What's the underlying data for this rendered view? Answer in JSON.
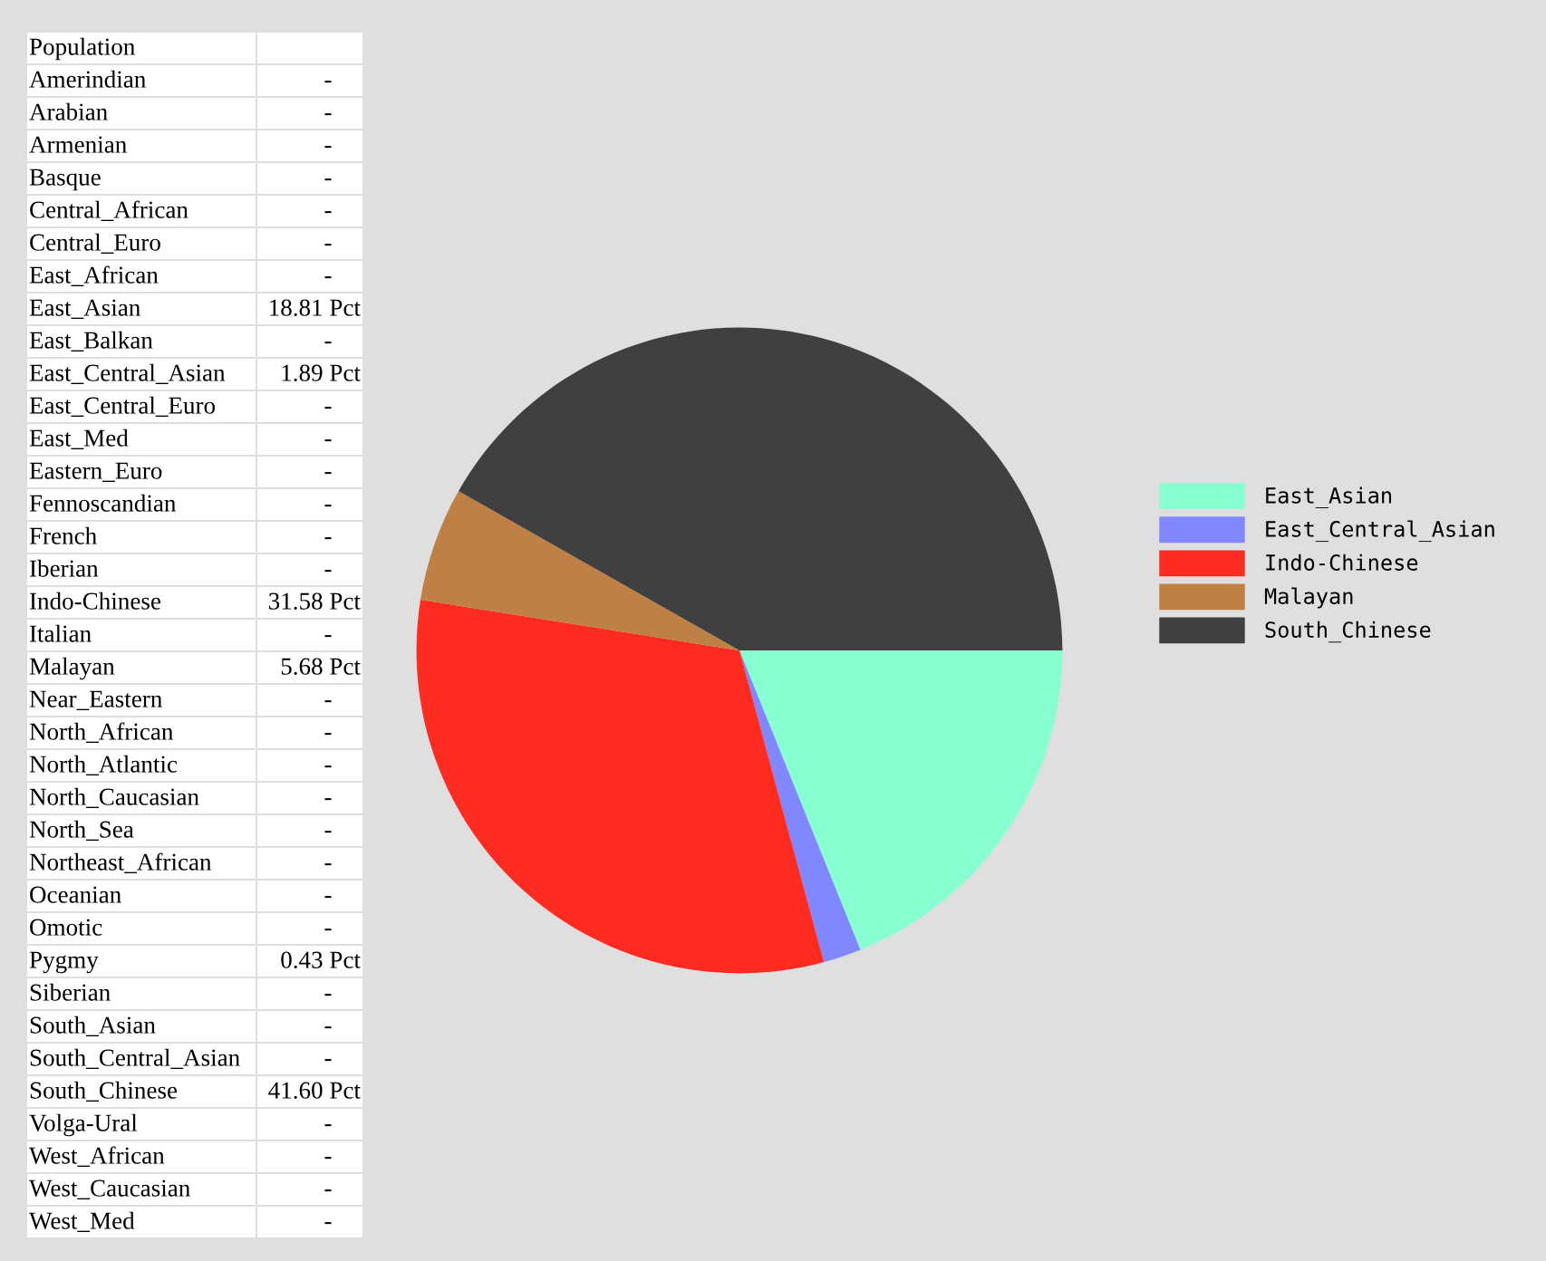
{
  "chart_data": [
    {
      "type": "other",
      "title": "Population",
      "categories": [
        "Amerindian",
        "Arabian",
        "Armenian",
        "Basque",
        "Central_African",
        "Central_Euro",
        "East_African",
        "East_Asian",
        "East_Balkan",
        "East_Central_Asian",
        "East_Central_Euro",
        "East_Med",
        "Eastern_Euro",
        "Fennoscandian",
        "French",
        "Iberian",
        "Indo-Chinese",
        "Italian",
        "Malayan",
        "Near_Eastern",
        "North_African",
        "North_Atlantic",
        "North_Caucasian",
        "North_Sea",
        "Northeast_African",
        "Oceanian",
        "Omotic",
        "Pygmy",
        "Siberian",
        "South_Asian",
        "South_Central_Asian",
        "South_Chinese",
        "Volga-Ural",
        "West_African",
        "West_Caucasian",
        "West_Med"
      ],
      "value_labels": [
        "-",
        "-",
        "-",
        "-",
        "-",
        "-",
        "-",
        "18.81 Pct",
        "-",
        "1.89 Pct",
        "-",
        "-",
        "-",
        "-",
        "-",
        "-",
        "31.58 Pct",
        "-",
        "5.68 Pct",
        "-",
        "-",
        "-",
        "-",
        "-",
        "-",
        "-",
        "-",
        "0.43 Pct",
        "-",
        "-",
        "-",
        "41.60 Pct",
        "-",
        "-",
        "-",
        "-"
      ]
    },
    {
      "type": "pie",
      "legend": "right",
      "categories": [
        "East_Asian",
        "East_Central_Asian",
        "Indo-Chinese",
        "Malayan",
        "South_Chinese"
      ],
      "values": [
        18.81,
        1.89,
        31.58,
        5.68,
        41.6
      ],
      "colors": [
        "#87ffd0",
        "#8087ff",
        "#ff2a20",
        "#bf8045",
        "#404040"
      ]
    }
  ]
}
